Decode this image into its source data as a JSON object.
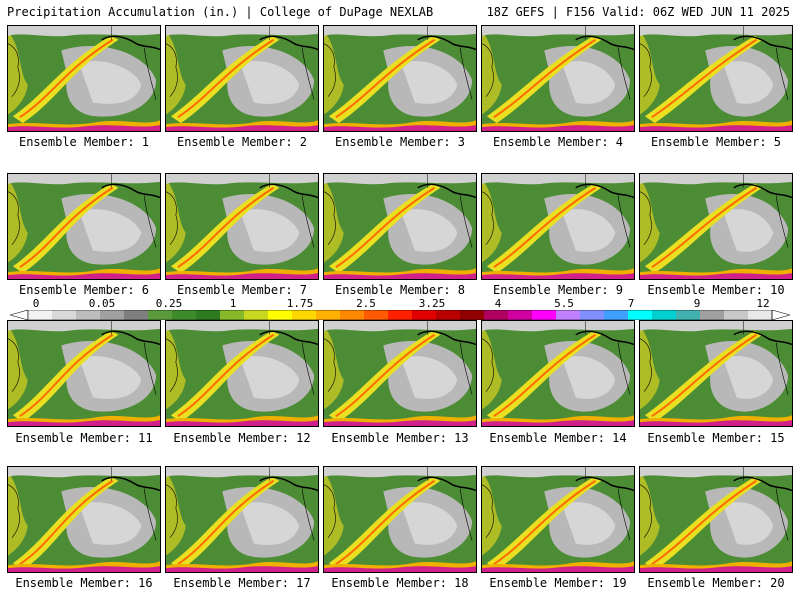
{
  "header": {
    "left": "Precipitation Accumulation (in.) | College of DuPage NEXLAB",
    "right": "18Z GEFS | F156 Valid: 06Z WED JUN 11 2025"
  },
  "panels": [
    {
      "label": "Ensemble Member: 1"
    },
    {
      "label": "Ensemble Member: 2"
    },
    {
      "label": "Ensemble Member: 3"
    },
    {
      "label": "Ensemble Member: 4"
    },
    {
      "label": "Ensemble Member: 5"
    },
    {
      "label": "Ensemble Member: 6"
    },
    {
      "label": "Ensemble Member: 7"
    },
    {
      "label": "Ensemble Member: 8"
    },
    {
      "label": "Ensemble Member: 9"
    },
    {
      "label": "Ensemble Member: 10"
    },
    {
      "label": "Ensemble Member: 11"
    },
    {
      "label": "Ensemble Member: 12"
    },
    {
      "label": "Ensemble Member: 13"
    },
    {
      "label": "Ensemble Member: 14"
    },
    {
      "label": "Ensemble Member: 15"
    },
    {
      "label": "Ensemble Member: 16"
    },
    {
      "label": "Ensemble Member: 17"
    },
    {
      "label": "Ensemble Member: 18"
    },
    {
      "label": "Ensemble Member: 19"
    },
    {
      "label": "Ensemble Member: 20"
    }
  ],
  "colorbar": {
    "ticks": [
      "0",
      "0.05",
      "0.25",
      "1",
      "1.75",
      "2.5",
      "3.25",
      "4",
      "5.5",
      "7",
      "9",
      "12"
    ],
    "colors": [
      "#f2f2f2",
      "#d9d9d9",
      "#bdbdbd",
      "#a0a0a0",
      "#7f7f7f",
      "#5a9a3a",
      "#3f8a2a",
      "#2e7a20",
      "#86b82a",
      "#c8d820",
      "#ffff00",
      "#ffd800",
      "#ffb000",
      "#ff8800",
      "#ff5a00",
      "#ff2000",
      "#e00000",
      "#b80000",
      "#900000",
      "#b00060",
      "#d000a0",
      "#ff00ff",
      "#c080ff",
      "#8090ff",
      "#40a0ff",
      "#00ffff",
      "#00d0d0",
      "#40b0b0",
      "#a0a0a0",
      "#c8c8c8",
      "#e8e8e8"
    ]
  }
}
